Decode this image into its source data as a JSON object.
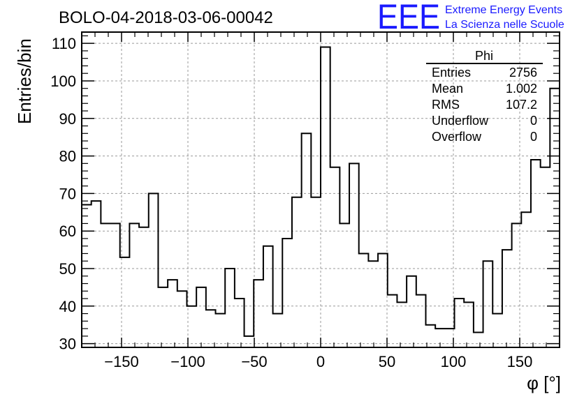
{
  "colors": {
    "logo": "#1a1aff",
    "line": "#000000",
    "grid": "#999999",
    "background": "#ffffff"
  },
  "logo": {
    "letters": "EEE",
    "line1": "Extreme Energy Events",
    "line2": "La Scienza nelle Scuole"
  },
  "stats": {
    "title": "Phi",
    "rows": [
      {
        "label": "Entries",
        "value": "2756"
      },
      {
        "label": "Mean",
        "value": "1.002"
      },
      {
        "label": "RMS",
        "value": "107.2"
      },
      {
        "label": "Underflow",
        "value": "0"
      },
      {
        "label": "Overflow",
        "value": "0"
      }
    ]
  },
  "chart_data": {
    "type": "histogram",
    "title": "BOLO-04-2018-03-06-00042",
    "xlabel": "φ [°]",
    "ylabel": "Entries/bin",
    "xlim": [
      -180,
      180
    ],
    "ylim": [
      29,
      113
    ],
    "grid": true,
    "bin_width": 7.2,
    "bin_start": -180,
    "xticks": [
      -150,
      -100,
      -50,
      0,
      50,
      100,
      150
    ],
    "xtick_labels": [
      "−150",
      "−100",
      "−50",
      "0",
      "50",
      "100",
      "150"
    ],
    "yticks": [
      30,
      40,
      50,
      60,
      70,
      80,
      90,
      100,
      110
    ],
    "ytick_labels": [
      "30",
      "40",
      "50",
      "60",
      "70",
      "80",
      "90",
      "100",
      "110"
    ],
    "values": [
      67,
      68,
      62,
      62,
      53,
      62,
      61,
      70,
      45,
      47,
      44,
      40,
      45,
      39,
      38,
      50,
      42,
      32,
      47,
      56,
      38,
      58,
      69,
      86,
      69,
      109,
      77,
      62,
      78,
      54,
      52,
      54,
      43,
      41,
      48,
      43,
      35,
      34,
      34,
      42,
      41,
      33,
      52,
      38,
      55,
      62,
      65,
      79,
      77,
      98
    ]
  }
}
